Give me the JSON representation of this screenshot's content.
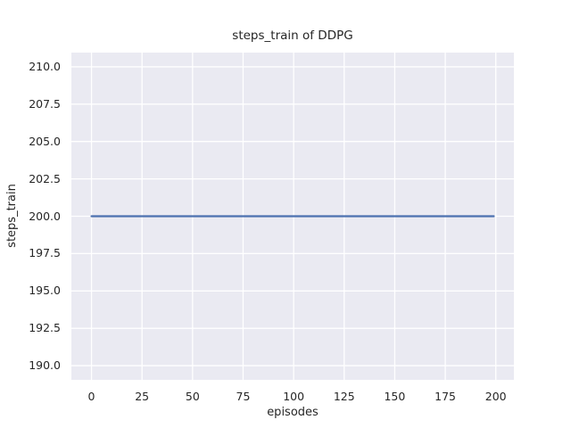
{
  "figure": {
    "background": "#ffffff",
    "text_color": "#262626"
  },
  "chart_data": {
    "type": "line",
    "title": "steps_train of DDPG",
    "xlabel": "episodes",
    "ylabel": "steps_train",
    "xlim": [
      -9.95,
      208.95
    ],
    "ylim": [
      189.05,
      210.95
    ],
    "xticks": [
      0,
      25,
      50,
      75,
      100,
      125,
      150,
      175,
      200
    ],
    "xtick_labels": [
      "0",
      "25",
      "50",
      "75",
      "100",
      "125",
      "150",
      "175",
      "200"
    ],
    "yticks": [
      190.0,
      192.5,
      195.0,
      197.5,
      200.0,
      202.5,
      205.0,
      207.5,
      210.0
    ],
    "ytick_labels": [
      "190.0",
      "192.5",
      "195.0",
      "197.5",
      "200.0",
      "202.5",
      "205.0",
      "207.5",
      "210.0"
    ],
    "grid": true,
    "legend": "none",
    "plot_background": "#EAEAF2",
    "grid_color": "#FFFFFF",
    "grid_line_width": 1.3,
    "series": [
      {
        "name": "steps_train",
        "color": "#4C72B0",
        "line_width": 2.2,
        "points": [
          [
            0,
            200.0
          ],
          [
            199,
            200.0
          ]
        ]
      }
    ]
  }
}
